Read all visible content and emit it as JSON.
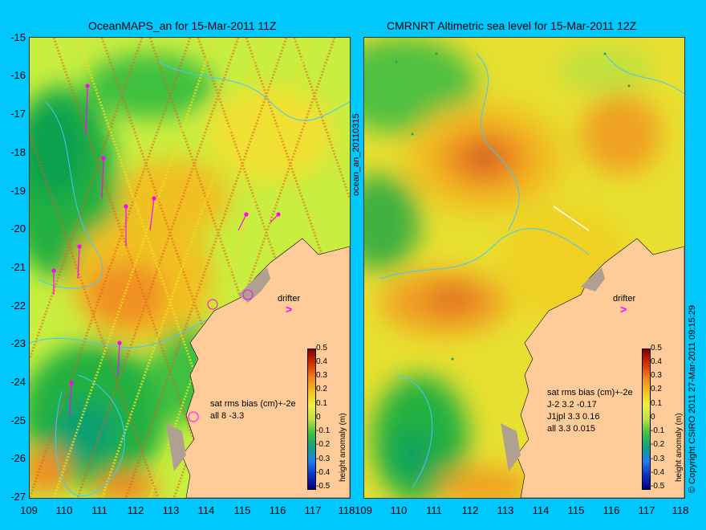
{
  "left": {
    "title": "OceanMAPS_an for 15-Mar-2011 11Z",
    "stats_header": "sat rms bias (cm)+-2e",
    "stats_lines": [
      "all 8 -3.3"
    ],
    "drifter": "drifter"
  },
  "right": {
    "title": "CMRNRT Altimetric sea level  for 15-Mar-2011 12Z",
    "stats_header": "sat rms bias (cm)+-2e",
    "stats_lines": [
      "J-2    3.2 -0.17",
      "J1jpl  3.3 0.16",
      "all 3.3 0.015"
    ],
    "drifter": "drifter"
  },
  "side_label": "ocean_an_20110315",
  "copyright": "© Copyright CSIRO 2011    27-Mar-2011 09:15:29",
  "y_ticks": [
    "-15",
    "-16",
    "-17",
    "-18",
    "-19",
    "-20",
    "-21",
    "-22",
    "-23",
    "-24",
    "-25",
    "-26",
    "-27"
  ],
  "x_ticks": [
    "109",
    "110",
    "111",
    "112",
    "113",
    "114",
    "115",
    "116",
    "117",
    "118"
  ],
  "colorbar": {
    "title": "height anomaly (m)",
    "ticks": [
      "0.5",
      "0.4",
      "0.3",
      "0.2",
      "0.1",
      "0",
      "-0.1",
      "-0.2",
      "-0.3",
      "-0.4",
      "-0.5"
    ]
  },
  "colors": {
    "background": "#00c8ff",
    "land": "#ffcc99",
    "coastal_shelf": "#b0a090",
    "drifter": "#ff00ff",
    "contour": "#40c8ff"
  }
}
